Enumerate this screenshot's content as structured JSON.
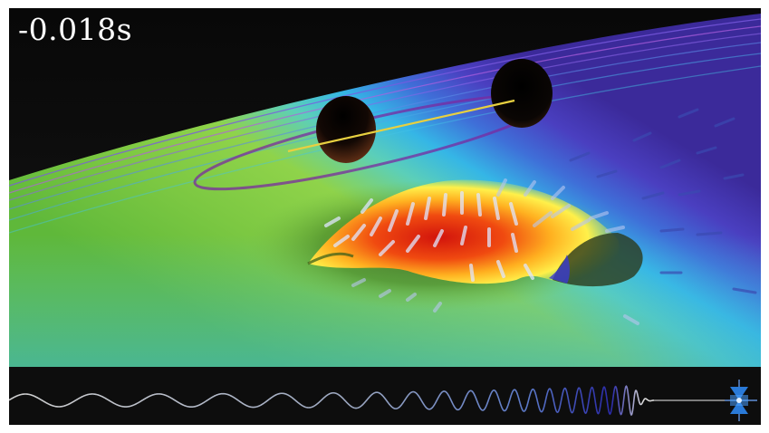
{
  "timer": {
    "label": "-0.018s"
  },
  "colors": {
    "background": "#0b0b0b",
    "surface_far": "#3a3aa8",
    "surface_mid": "#3cc0e8",
    "surface_near": "#78c84a",
    "hot": "#e02a10",
    "warm": "#ffe020",
    "body": "#1a0e08",
    "orbit": "#e8d040",
    "waveform": "#c8c8c8",
    "waveform_peak": "#3a3ab8",
    "detector": "#2a7ad8"
  },
  "icons": [
    "black-hole-icon",
    "gravitational-waveform-icon",
    "detector-icon"
  ]
}
